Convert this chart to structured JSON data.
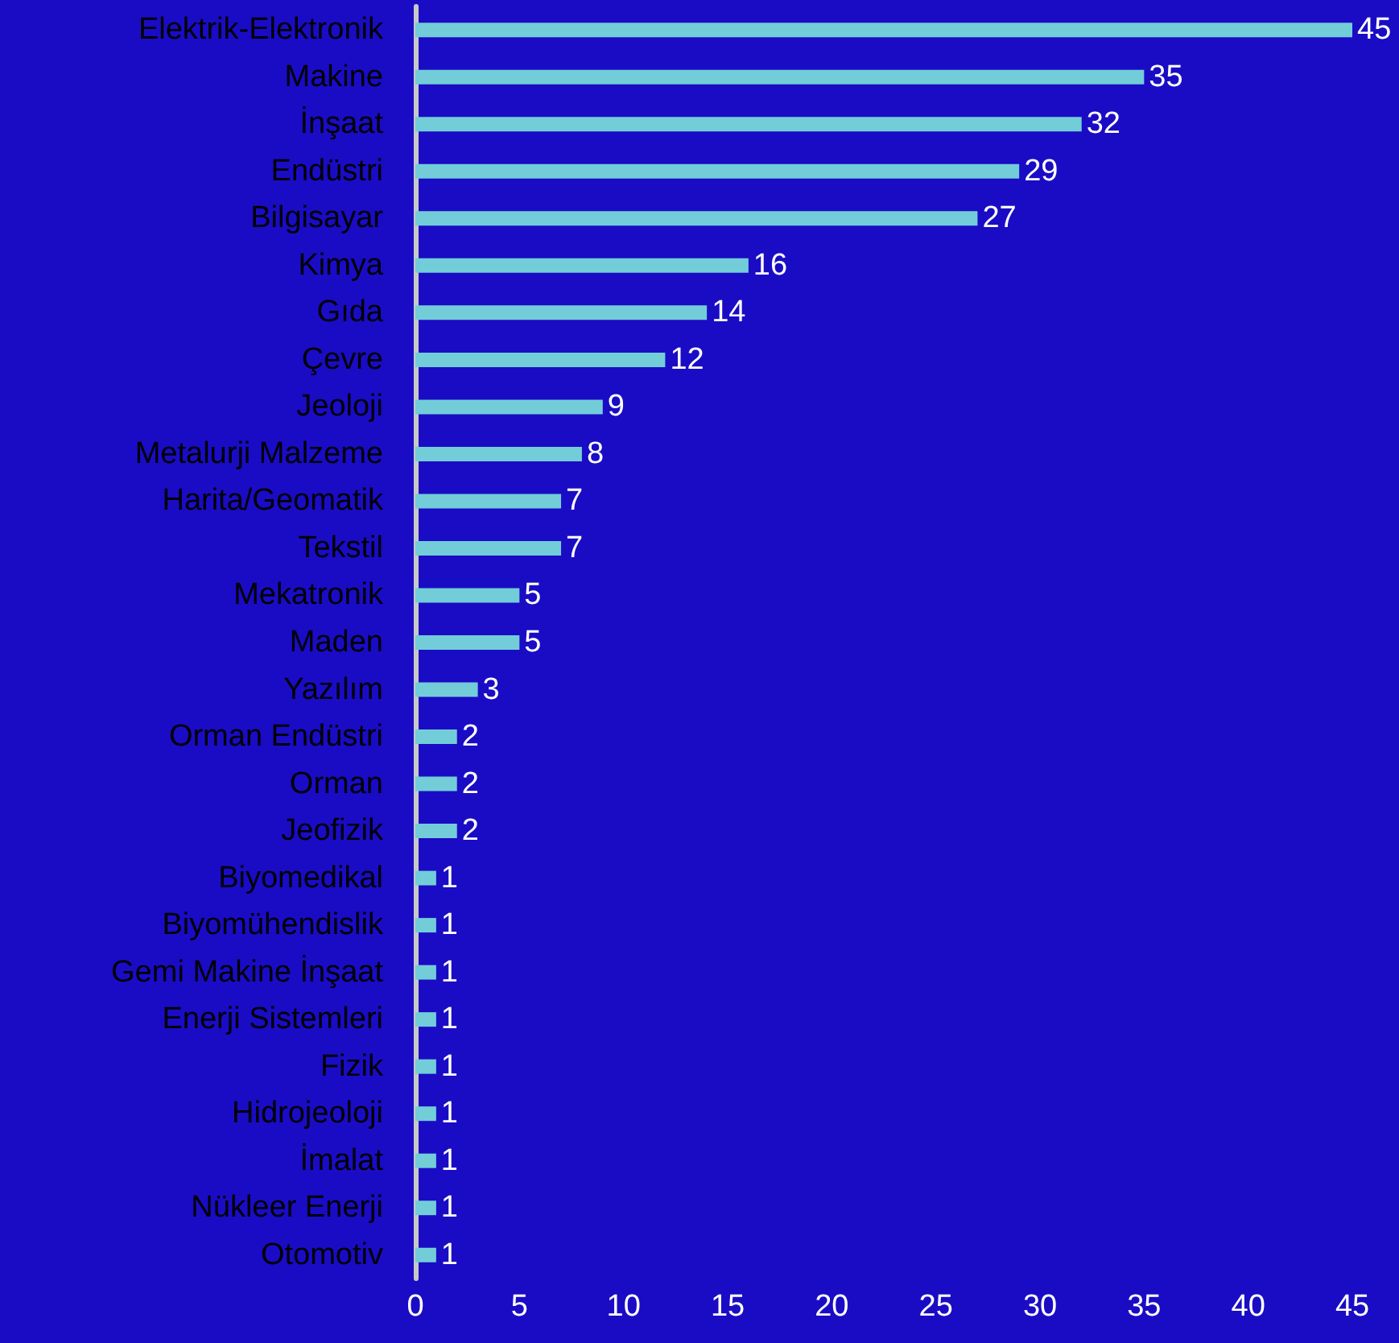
{
  "chart_data": {
    "type": "bar",
    "orientation": "horizontal",
    "categories": [
      "Elektrik-Elektronik",
      "Makine",
      "İnşaat",
      "Endüstri",
      "Bilgisayar",
      "Kimya",
      "Gıda",
      "Çevre",
      "Jeoloji",
      "Metalurji Malzeme",
      "Harita/Geomatik",
      "Tekstil",
      "Mekatronik",
      "Maden",
      "Yazılım",
      "Orman Endüstri",
      "Orman",
      "Jeofizik",
      "Biyomedikal",
      "Biyomühendislik",
      "Gemi Makine İnşaat",
      "Enerji Sistemleri",
      "Fizik",
      "Hidrojeoloji",
      "İmalat",
      "Nükleer Enerji",
      "Otomotiv"
    ],
    "values": [
      45,
      35,
      32,
      29,
      27,
      16,
      14,
      12,
      9,
      8,
      7,
      7,
      5,
      5,
      3,
      2,
      2,
      2,
      1,
      1,
      1,
      1,
      1,
      1,
      1,
      1,
      1
    ],
    "color": "#72cdd8",
    "xlim": [
      0,
      45
    ],
    "xticks": [
      0,
      5,
      10,
      15,
      20,
      25,
      30,
      35,
      40,
      45
    ],
    "grid": false,
    "data_labels": true
  }
}
